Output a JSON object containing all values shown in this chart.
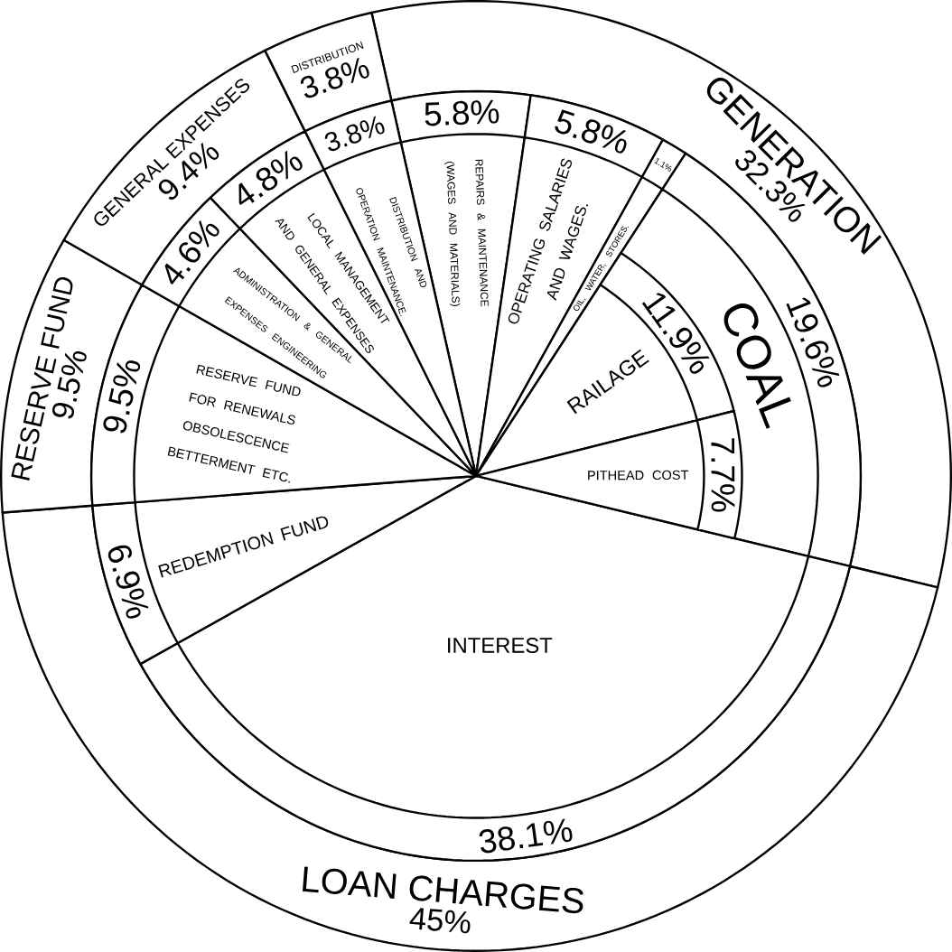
{
  "chart_data": [
    {
      "type": "donut",
      "categories": [
        "GENERATION",
        "LOAN CHARGES",
        "RESERVE FUND",
        "GENERAL EXPENSES",
        "DISTRIBUTION"
      ],
      "values": [
        32.3,
        45,
        9.5,
        9.4,
        3.8
      ],
      "value_labels": [
        "32.3%",
        "45%",
        "9.5%",
        "9.4%",
        "3.8%"
      ],
      "colors": [
        "#ffffff",
        "#ffffff",
        "#ffffff",
        "#ffffff",
        "#ffffff"
      ]
    },
    {
      "type": "pie",
      "categories": [
        "REPAIRS & MAINTENANCE (WAGES AND MATERIALS)",
        "OPERATING SALARIES AND WAGES.",
        "OIL, WATER, STORES.",
        "COAL",
        "INTEREST",
        "REDEMPTION FUND",
        "RESERVE FUND FOR RENEWALS OBSOLESCENCE BETTERMENT ETC.",
        "ADMINISTRATION & GENERAL EXPENSES ENGINEERING",
        "LOCAL MANAGEMENT AND GENERAL EXPENSES",
        "DISTRIBUTION AND OPERATION MAINTENANCE."
      ],
      "values": [
        5.8,
        5.8,
        1.1,
        19.6,
        38.1,
        6.9,
        9.5,
        4.6,
        4.8,
        3.8
      ],
      "value_labels": [
        "5.8%",
        "5.8%",
        "1.1%",
        "19.6%",
        "38.1%",
        "6.9%",
        "9.5%",
        "4.6%",
        "4.8%",
        "3.8%"
      ],
      "colors": [
        "#ffffff",
        "#ffffff",
        "#ffffff",
        "#ffffff",
        "#ffffff",
        "#ffffff",
        "#ffffff",
        "#ffffff",
        "#ffffff",
        "#ffffff"
      ]
    },
    {
      "type": "pie",
      "categories": [
        "RAILAGE",
        "PITHEAD COST"
      ],
      "values": [
        11.9,
        7.7
      ],
      "value_labels": [
        "11.9%",
        "7.7%"
      ],
      "colors": [
        "#ffffff",
        "#ffffff"
      ]
    }
  ]
}
